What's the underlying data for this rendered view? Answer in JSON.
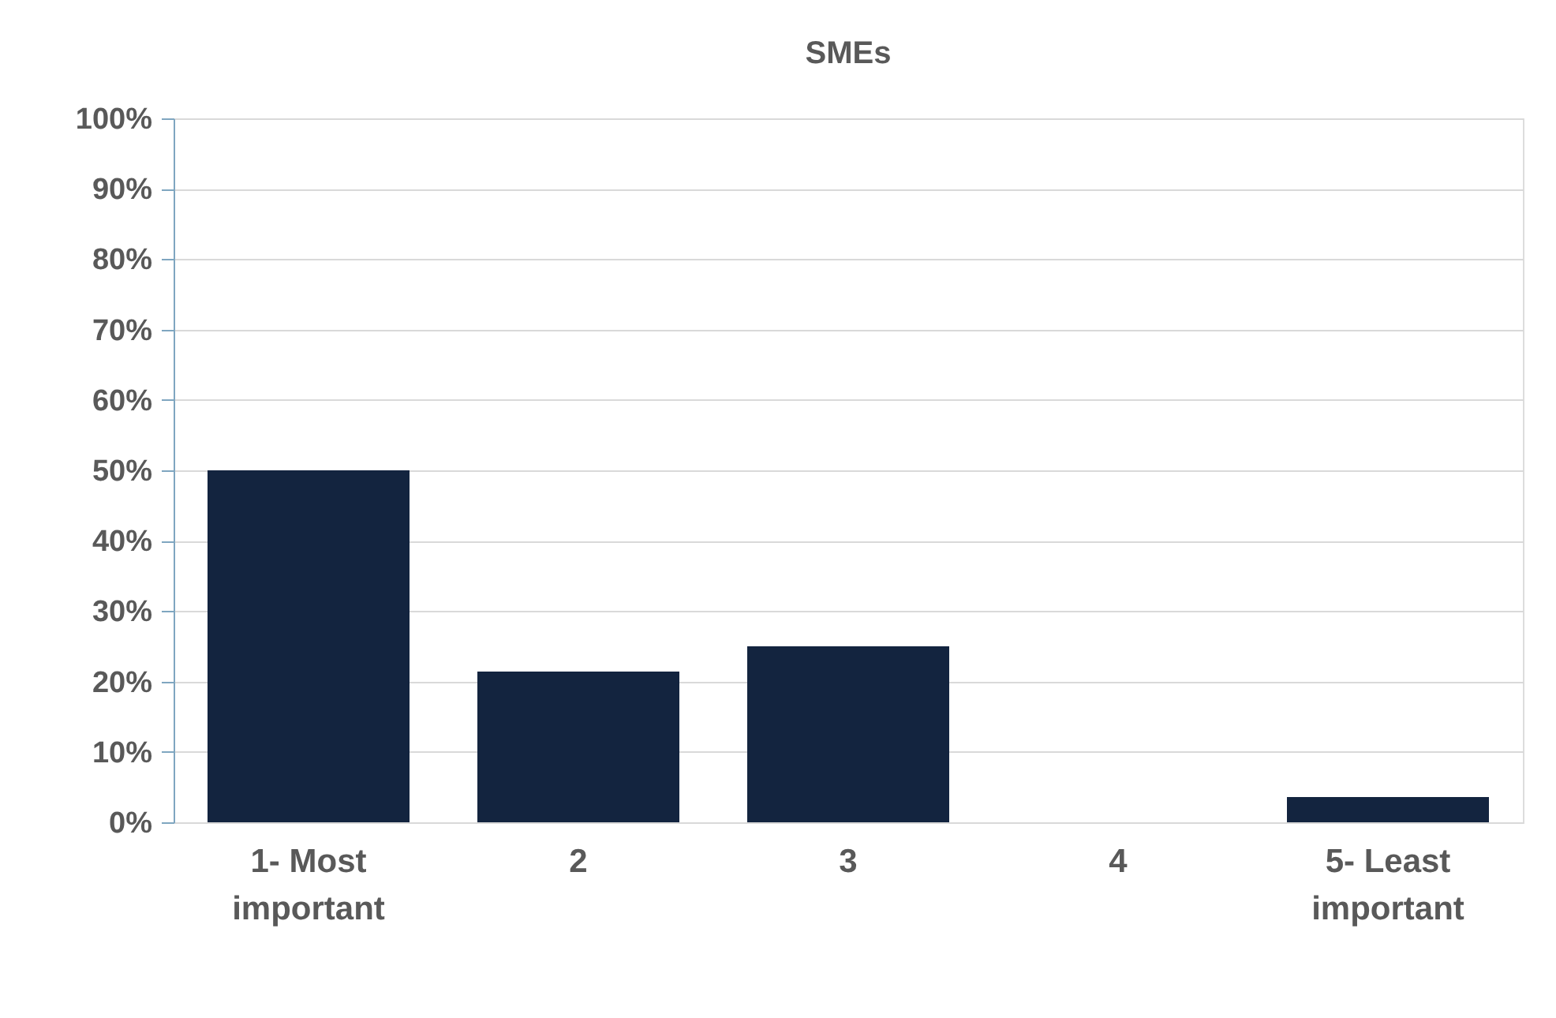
{
  "chart_data": {
    "type": "bar",
    "title": "SMEs",
    "categories": [
      "1- Most important",
      "2",
      "3",
      "4",
      "5- Least important"
    ],
    "values": [
      50,
      21.4,
      25,
      0,
      3.6
    ],
    "color": "#13243f",
    "ylim": [
      0,
      100
    ],
    "yticks": [
      {
        "value": 0,
        "label": "0%"
      },
      {
        "value": 10,
        "label": "10%"
      },
      {
        "value": 20,
        "label": "20%"
      },
      {
        "value": 30,
        "label": "30%"
      },
      {
        "value": 40,
        "label": "40%"
      },
      {
        "value": 50,
        "label": "50%"
      },
      {
        "value": 60,
        "label": "60%"
      },
      {
        "value": 70,
        "label": "70%"
      },
      {
        "value": 80,
        "label": "80%"
      },
      {
        "value": 90,
        "label": "90%"
      },
      {
        "value": 100,
        "label": "100%"
      }
    ],
    "grid": "y"
  }
}
